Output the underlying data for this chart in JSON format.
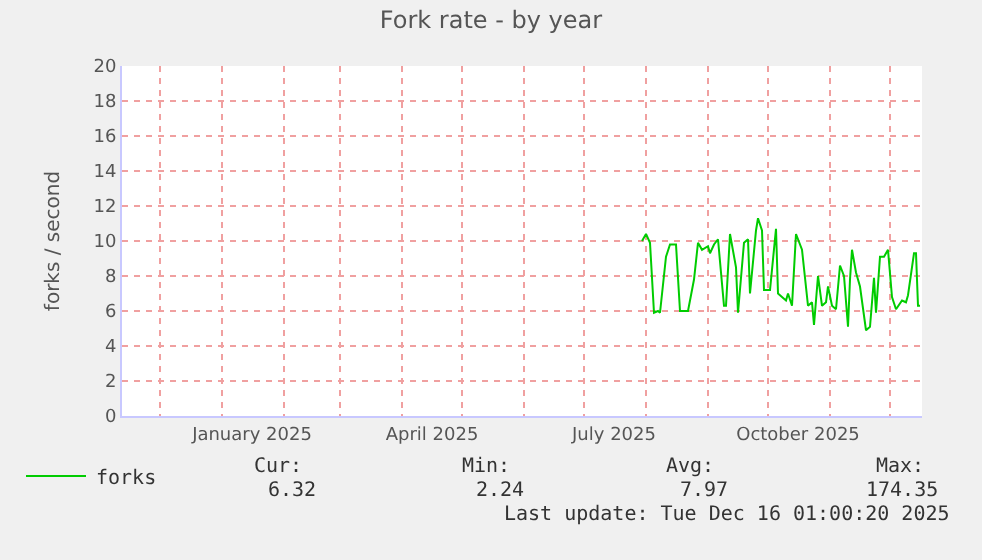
{
  "chart_data": {
    "type": "line",
    "title": "Fork rate - by year",
    "ylabel": "forks / second",
    "xlim": [
      "2024-11-12",
      "2025-12-17"
    ],
    "ylim": [
      0,
      20
    ],
    "yticks": [
      0,
      2,
      4,
      6,
      8,
      10,
      12,
      14,
      16,
      18,
      20
    ],
    "xticks": [
      {
        "value": "2024-12-01",
        "label": null
      },
      {
        "value": "2025-01-01",
        "label": null
      },
      {
        "value": "2025-01-16",
        "label": "January 2025"
      },
      {
        "value": "2025-02-01",
        "label": null
      },
      {
        "value": "2025-03-01",
        "label": null
      },
      {
        "value": "2025-04-01",
        "label": null
      },
      {
        "value": "2025-04-16",
        "label": "April 2025"
      },
      {
        "value": "2025-05-01",
        "label": null
      },
      {
        "value": "2025-06-01",
        "label": null
      },
      {
        "value": "2025-07-01",
        "label": null
      },
      {
        "value": "2025-07-16",
        "label": "July 2025"
      },
      {
        "value": "2025-08-01",
        "label": null
      },
      {
        "value": "2025-09-01",
        "label": null
      },
      {
        "value": "2025-10-01",
        "label": null
      },
      {
        "value": "2025-10-16",
        "label": "October 2025"
      },
      {
        "value": "2025-11-01",
        "label": null
      },
      {
        "value": "2025-12-01",
        "label": null
      }
    ],
    "grid": true,
    "legend": "bottom left",
    "marker": "none",
    "line_style": "solid",
    "series": [
      {
        "name": "forks",
        "color": "#00cc00",
        "x": [
          "2025-07-30",
          "2025-07-31",
          "2025-08-01",
          "2025-08-03",
          "2025-08-05",
          "2025-08-07",
          "2025-08-08",
          "2025-08-11",
          "2025-08-13",
          "2025-08-16",
          "2025-08-18",
          "2025-08-22",
          "2025-08-25",
          "2025-08-27",
          "2025-08-29",
          "2025-09-01",
          "2025-09-02",
          "2025-09-04",
          "2025-09-06",
          "2025-09-09",
          "2025-09-10",
          "2025-09-12",
          "2025-09-15",
          "2025-09-16",
          "2025-09-19",
          "2025-09-21",
          "2025-09-22",
          "2025-09-25",
          "2025-09-26",
          "2025-09-28",
          "2025-09-29",
          "2025-10-02",
          "2025-10-05",
          "2025-10-06",
          "2025-10-10",
          "2025-10-11",
          "2025-10-13",
          "2025-10-15",
          "2025-10-18",
          "2025-10-21",
          "2025-10-23",
          "2025-10-24",
          "2025-10-26",
          "2025-10-28",
          "2025-10-30",
          "2025-10-31",
          "2025-11-02",
          "2025-11-04",
          "2025-11-06",
          "2025-11-08",
          "2025-11-10",
          "2025-11-11",
          "2025-11-12",
          "2025-11-14",
          "2025-11-16",
          "2025-11-19",
          "2025-11-21",
          "2025-11-23",
          "2025-11-24",
          "2025-11-26",
          "2025-11-28",
          "2025-11-30",
          "2025-12-02",
          "2025-12-04",
          "2025-12-07",
          "2025-12-09",
          "2025-12-10",
          "2025-12-13",
          "2025-12-14",
          "2025-12-15",
          "2025-12-16"
        ],
        "values": [
          10.0,
          10.2,
          10.4,
          9.9,
          5.9,
          6.0,
          5.9,
          9.1,
          9.8,
          9.8,
          6.0,
          6.0,
          7.8,
          9.9,
          9.5,
          9.7,
          9.3,
          9.8,
          10.1,
          6.3,
          6.3,
          10.4,
          8.5,
          5.9,
          9.9,
          10.1,
          7.0,
          10.6,
          11.3,
          10.6,
          7.2,
          7.2,
          10.7,
          7.0,
          6.6,
          7.0,
          6.3,
          10.4,
          9.5,
          6.3,
          6.5,
          5.2,
          8.0,
          6.3,
          6.5,
          7.4,
          6.3,
          6.1,
          8.6,
          8.0,
          5.1,
          7.8,
          9.5,
          8.2,
          7.4,
          4.9,
          5.1,
          7.9,
          5.9,
          9.1,
          9.1,
          9.5,
          6.8,
          6.1,
          6.6,
          6.5,
          6.9,
          9.3,
          9.3,
          6.3,
          6.3
        ]
      }
    ],
    "annotations": [
      "Cur:",
      "6.32",
      "Min:",
      "2.24",
      "Avg:",
      "7.97",
      "Max:",
      "174.35",
      "Last update: Tue Dec 16 01:00:20 2025"
    ]
  }
}
